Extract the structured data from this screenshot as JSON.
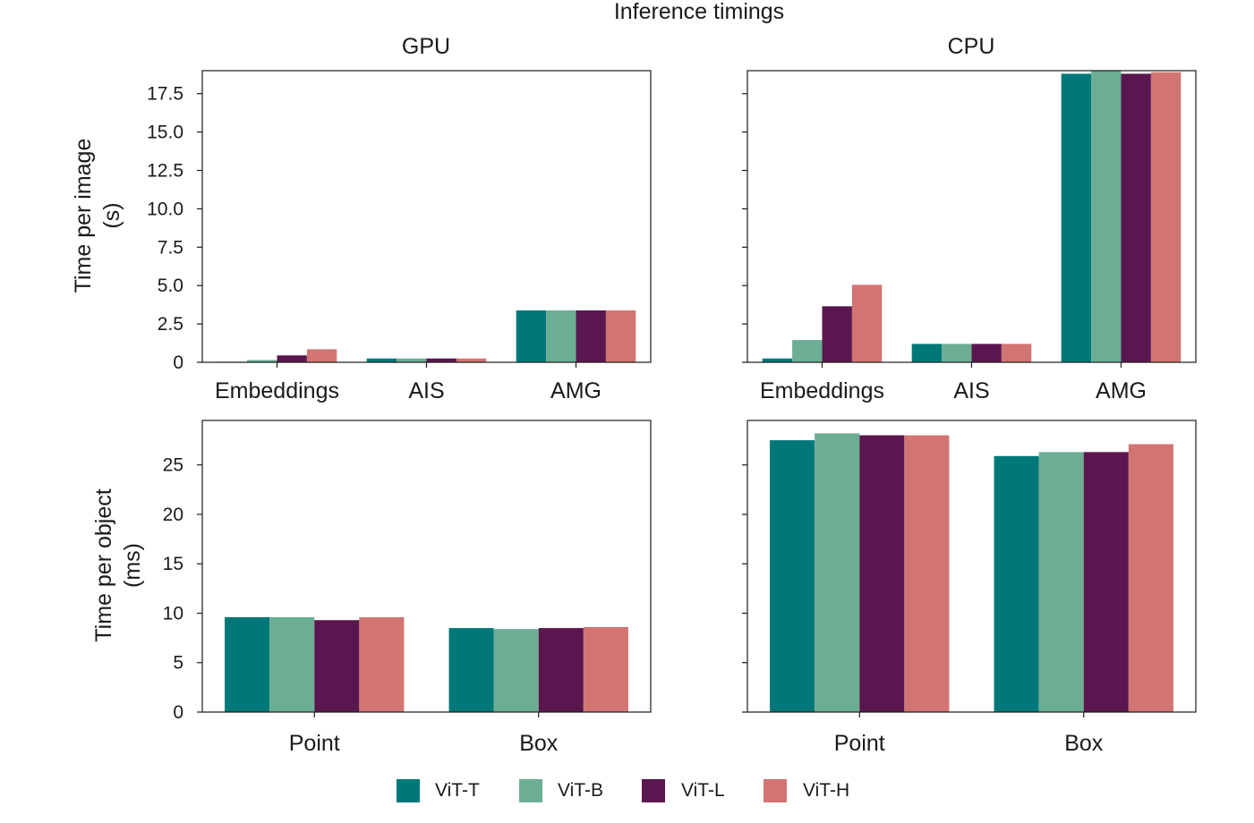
{
  "chart_data": {
    "type": "bar",
    "title": "Inference timings",
    "series_names": [
      "ViT-T",
      "ViT-B",
      "ViT-L",
      "ViT-H"
    ],
    "colors": [
      "#00787a",
      "#6cae93",
      "#5a174f",
      "#d27572"
    ],
    "legend_position": "bottom-center",
    "panels": [
      {
        "id": "gpu-image",
        "column_title": "GPU",
        "ylabel": [
          "Time per image",
          "(s)"
        ],
        "ylim": [
          0,
          19.0
        ],
        "yticks": [
          0,
          2.5,
          5.0,
          7.5,
          10.0,
          12.5,
          15.0,
          17.5
        ],
        "ytick_labels": [
          "0",
          "2.5",
          "5.0",
          "7.5",
          "10.0",
          "12.5",
          "15.0",
          "17.5"
        ],
        "categories": [
          "Embeddings",
          "AIS",
          "AMG"
        ],
        "series": [
          {
            "name": "ViT-T",
            "values": [
              0.02,
              0.25,
              3.38
            ]
          },
          {
            "name": "ViT-B",
            "values": [
              0.15,
              0.25,
              3.38
            ]
          },
          {
            "name": "ViT-L",
            "values": [
              0.45,
              0.25,
              3.38
            ]
          },
          {
            "name": "ViT-H",
            "values": [
              0.85,
              0.25,
              3.38
            ]
          }
        ]
      },
      {
        "id": "cpu-image",
        "column_title": "CPU",
        "ylim": [
          0,
          19.0
        ],
        "yticks": [
          0,
          2.5,
          5.0,
          7.5,
          10.0,
          12.5,
          15.0,
          17.5
        ],
        "categories": [
          "Embeddings",
          "AIS",
          "AMG"
        ],
        "series": [
          {
            "name": "ViT-T",
            "values": [
              0.25,
              1.2,
              18.8
            ]
          },
          {
            "name": "ViT-B",
            "values": [
              1.45,
              1.2,
              19.0
            ]
          },
          {
            "name": "ViT-L",
            "values": [
              3.65,
              1.2,
              18.8
            ]
          },
          {
            "name": "ViT-H",
            "values": [
              5.05,
              1.2,
              18.9
            ]
          }
        ]
      },
      {
        "id": "gpu-object",
        "ylabel": [
          "Time per object",
          "(ms)"
        ],
        "ylim": [
          0,
          29.5
        ],
        "yticks": [
          0,
          5,
          10,
          15,
          20,
          25
        ],
        "ytick_labels": [
          "0",
          "5",
          "10",
          "15",
          "20",
          "25"
        ],
        "categories": [
          "Point",
          "Box"
        ],
        "series": [
          {
            "name": "ViT-T",
            "values": [
              9.6,
              8.5
            ]
          },
          {
            "name": "ViT-B",
            "values": [
              9.6,
              8.4
            ]
          },
          {
            "name": "ViT-L",
            "values": [
              9.3,
              8.5
            ]
          },
          {
            "name": "ViT-H",
            "values": [
              9.6,
              8.6
            ]
          }
        ]
      },
      {
        "id": "cpu-object",
        "ylim": [
          0,
          29.5
        ],
        "yticks": [
          0,
          5,
          10,
          15,
          20,
          25
        ],
        "categories": [
          "Point",
          "Box"
        ],
        "series": [
          {
            "name": "ViT-T",
            "values": [
              27.5,
              25.9
            ]
          },
          {
            "name": "ViT-B",
            "values": [
              28.2,
              26.3
            ]
          },
          {
            "name": "ViT-L",
            "values": [
              28.0,
              26.3
            ]
          },
          {
            "name": "ViT-H",
            "values": [
              28.0,
              27.1
            ]
          }
        ]
      }
    ]
  }
}
